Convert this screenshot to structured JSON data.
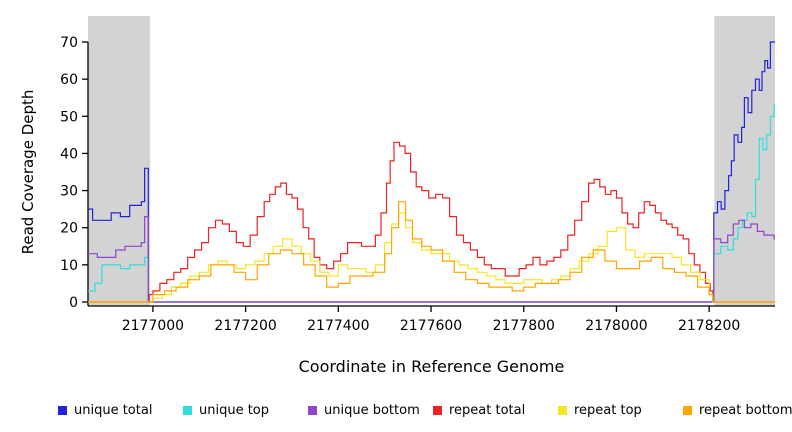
{
  "chart_data": {
    "type": "line",
    "title": "",
    "xlabel": "Coordinate in Reference Genome",
    "ylabel": "Read Coverage Depth",
    "xlim": [
      2176860,
      2178342
    ],
    "ylim": [
      0,
      70
    ],
    "x_ticks": [
      2177000,
      2177200,
      2177400,
      2177600,
      2177800,
      2178000,
      2178200
    ],
    "y_ticks": [
      0,
      10,
      20,
      30,
      40,
      50,
      60,
      70
    ],
    "grid": false,
    "legend_position": "bottom",
    "axis_color": "#000000",
    "masked_region_color": "#d3d3d3",
    "masked_regions": [
      [
        2176860,
        2176994
      ],
      [
        2178211,
        2178342
      ]
    ],
    "series": [
      {
        "name": "unique total",
        "color": "#2222dd",
        "points": [
          [
            2176860,
            25
          ],
          [
            2176870,
            22
          ],
          [
            2176890,
            22
          ],
          [
            2176910,
            24
          ],
          [
            2176930,
            23
          ],
          [
            2176950,
            26
          ],
          [
            2176965,
            26
          ],
          [
            2176975,
            27
          ],
          [
            2176982,
            36
          ],
          [
            2176990,
            0
          ],
          [
            2178208,
            0
          ],
          [
            2178210,
            24
          ],
          [
            2178218,
            27
          ],
          [
            2178226,
            25
          ],
          [
            2178234,
            30
          ],
          [
            2178242,
            34
          ],
          [
            2178248,
            38
          ],
          [
            2178254,
            45
          ],
          [
            2178262,
            43
          ],
          [
            2178270,
            47
          ],
          [
            2178276,
            55
          ],
          [
            2178284,
            51
          ],
          [
            2178292,
            57
          ],
          [
            2178300,
            60
          ],
          [
            2178308,
            57
          ],
          [
            2178314,
            62
          ],
          [
            2178320,
            65
          ],
          [
            2178326,
            63
          ],
          [
            2178332,
            70
          ],
          [
            2178340,
            70
          ]
        ]
      },
      {
        "name": "unique top",
        "color": "#30dede",
        "points": [
          [
            2176860,
            3
          ],
          [
            2176875,
            5
          ],
          [
            2176890,
            10
          ],
          [
            2176910,
            10
          ],
          [
            2176930,
            9
          ],
          [
            2176950,
            10
          ],
          [
            2176970,
            10
          ],
          [
            2176982,
            12
          ],
          [
            2176990,
            0
          ],
          [
            2178208,
            0
          ],
          [
            2178210,
            13
          ],
          [
            2178225,
            15
          ],
          [
            2178240,
            14
          ],
          [
            2178252,
            17
          ],
          [
            2178262,
            20
          ],
          [
            2178272,
            22
          ],
          [
            2178282,
            24
          ],
          [
            2178292,
            23
          ],
          [
            2178300,
            33
          ],
          [
            2178308,
            44
          ],
          [
            2178316,
            41
          ],
          [
            2178324,
            45
          ],
          [
            2178332,
            50
          ],
          [
            2178340,
            53
          ]
        ]
      },
      {
        "name": "unique bottom",
        "color": "#9044cc",
        "points": [
          [
            2176860,
            13
          ],
          [
            2176880,
            12
          ],
          [
            2176900,
            12
          ],
          [
            2176920,
            14
          ],
          [
            2176940,
            15
          ],
          [
            2176960,
            15
          ],
          [
            2176975,
            16
          ],
          [
            2176982,
            23
          ],
          [
            2176990,
            0
          ],
          [
            2178208,
            0
          ],
          [
            2178210,
            17
          ],
          [
            2178225,
            16
          ],
          [
            2178240,
            18
          ],
          [
            2178252,
            21
          ],
          [
            2178264,
            22
          ],
          [
            2178276,
            20
          ],
          [
            2178290,
            21
          ],
          [
            2178304,
            19
          ],
          [
            2178318,
            18
          ],
          [
            2178330,
            18
          ],
          [
            2178340,
            17
          ]
        ]
      },
      {
        "name": "repeat total",
        "color": "#ee2222",
        "points": [
          [
            2176860,
            0
          ],
          [
            2176988,
            0
          ],
          [
            2176992,
            2
          ],
          [
            2177000,
            3
          ],
          [
            2177015,
            5
          ],
          [
            2177030,
            6
          ],
          [
            2177045,
            8
          ],
          [
            2177060,
            9
          ],
          [
            2177075,
            12
          ],
          [
            2177090,
            14
          ],
          [
            2177105,
            16
          ],
          [
            2177120,
            20
          ],
          [
            2177135,
            22
          ],
          [
            2177150,
            21
          ],
          [
            2177165,
            19
          ],
          [
            2177180,
            16
          ],
          [
            2177195,
            15
          ],
          [
            2177210,
            18
          ],
          [
            2177225,
            23
          ],
          [
            2177240,
            27
          ],
          [
            2177252,
            29
          ],
          [
            2177264,
            31
          ],
          [
            2177276,
            32
          ],
          [
            2177288,
            29
          ],
          [
            2177300,
            28
          ],
          [
            2177312,
            25
          ],
          [
            2177324,
            20
          ],
          [
            2177336,
            17
          ],
          [
            2177348,
            12
          ],
          [
            2177360,
            10
          ],
          [
            2177375,
            9
          ],
          [
            2177390,
            11
          ],
          [
            2177405,
            13
          ],
          [
            2177420,
            16
          ],
          [
            2177435,
            16
          ],
          [
            2177450,
            15
          ],
          [
            2177465,
            15
          ],
          [
            2177480,
            18
          ],
          [
            2177492,
            24
          ],
          [
            2177504,
            32
          ],
          [
            2177512,
            38
          ],
          [
            2177520,
            43
          ],
          [
            2177532,
            42
          ],
          [
            2177544,
            40
          ],
          [
            2177556,
            35
          ],
          [
            2177568,
            31
          ],
          [
            2177580,
            30
          ],
          [
            2177595,
            28
          ],
          [
            2177610,
            29
          ],
          [
            2177625,
            28
          ],
          [
            2177640,
            23
          ],
          [
            2177655,
            18
          ],
          [
            2177670,
            16
          ],
          [
            2177685,
            14
          ],
          [
            2177700,
            12
          ],
          [
            2177715,
            10
          ],
          [
            2177730,
            9
          ],
          [
            2177745,
            9
          ],
          [
            2177760,
            7
          ],
          [
            2177775,
            7
          ],
          [
            2177790,
            9
          ],
          [
            2177805,
            10
          ],
          [
            2177820,
            12
          ],
          [
            2177835,
            10
          ],
          [
            2177850,
            11
          ],
          [
            2177865,
            12
          ],
          [
            2177880,
            14
          ],
          [
            2177895,
            18
          ],
          [
            2177910,
            22
          ],
          [
            2177925,
            27
          ],
          [
            2177940,
            32
          ],
          [
            2177952,
            33
          ],
          [
            2177964,
            31
          ],
          [
            2177976,
            29
          ],
          [
            2177988,
            30
          ],
          [
            2178000,
            28
          ],
          [
            2178012,
            24
          ],
          [
            2178024,
            21
          ],
          [
            2178036,
            20
          ],
          [
            2178048,
            24
          ],
          [
            2178060,
            27
          ],
          [
            2178072,
            26
          ],
          [
            2178084,
            24
          ],
          [
            2178096,
            22
          ],
          [
            2178108,
            21
          ],
          [
            2178120,
            20
          ],
          [
            2178132,
            18
          ],
          [
            2178144,
            17
          ],
          [
            2178156,
            13
          ],
          [
            2178168,
            10
          ],
          [
            2178180,
            8
          ],
          [
            2178192,
            5
          ],
          [
            2178202,
            3
          ],
          [
            2178208,
            0
          ],
          [
            2178340,
            0
          ]
        ]
      },
      {
        "name": "repeat top",
        "color": "#f5e626",
        "points": [
          [
            2176860,
            0
          ],
          [
            2176990,
            0
          ],
          [
            2177000,
            1
          ],
          [
            2177020,
            2
          ],
          [
            2177040,
            4
          ],
          [
            2177060,
            5
          ],
          [
            2177080,
            7
          ],
          [
            2177100,
            8
          ],
          [
            2177120,
            10
          ],
          [
            2177140,
            11
          ],
          [
            2177160,
            10
          ],
          [
            2177180,
            9
          ],
          [
            2177200,
            10
          ],
          [
            2177220,
            11
          ],
          [
            2177240,
            13
          ],
          [
            2177260,
            15
          ],
          [
            2177280,
            17
          ],
          [
            2177300,
            15
          ],
          [
            2177320,
            13
          ],
          [
            2177340,
            11
          ],
          [
            2177360,
            8
          ],
          [
            2177380,
            7
          ],
          [
            2177400,
            10
          ],
          [
            2177420,
            9
          ],
          [
            2177440,
            9
          ],
          [
            2177460,
            8
          ],
          [
            2177480,
            10
          ],
          [
            2177500,
            16
          ],
          [
            2177515,
            21
          ],
          [
            2177530,
            24
          ],
          [
            2177545,
            20
          ],
          [
            2177560,
            16
          ],
          [
            2177580,
            14
          ],
          [
            2177600,
            13
          ],
          [
            2177620,
            13
          ],
          [
            2177640,
            11
          ],
          [
            2177660,
            10
          ],
          [
            2177680,
            9
          ],
          [
            2177700,
            8
          ],
          [
            2177720,
            7
          ],
          [
            2177740,
            6
          ],
          [
            2177760,
            5
          ],
          [
            2177780,
            5
          ],
          [
            2177800,
            6
          ],
          [
            2177820,
            6
          ],
          [
            2177840,
            5
          ],
          [
            2177860,
            6
          ],
          [
            2177880,
            7
          ],
          [
            2177900,
            9
          ],
          [
            2177920,
            11
          ],
          [
            2177940,
            13
          ],
          [
            2177960,
            15
          ],
          [
            2177980,
            19
          ],
          [
            2178000,
            20
          ],
          [
            2178020,
            14
          ],
          [
            2178040,
            12
          ],
          [
            2178060,
            13
          ],
          [
            2178080,
            13
          ],
          [
            2178100,
            13
          ],
          [
            2178120,
            12
          ],
          [
            2178140,
            10
          ],
          [
            2178160,
            8
          ],
          [
            2178180,
            6
          ],
          [
            2178200,
            2
          ],
          [
            2178208,
            0
          ],
          [
            2178340,
            0
          ]
        ]
      },
      {
        "name": "repeat bottom",
        "color": "#ffa500",
        "points": [
          [
            2176860,
            0
          ],
          [
            2176990,
            0
          ],
          [
            2177000,
            2
          ],
          [
            2177025,
            3
          ],
          [
            2177050,
            4
          ],
          [
            2177075,
            6
          ],
          [
            2177100,
            7
          ],
          [
            2177125,
            10
          ],
          [
            2177150,
            10
          ],
          [
            2177175,
            8
          ],
          [
            2177200,
            6
          ],
          [
            2177225,
            10
          ],
          [
            2177250,
            13
          ],
          [
            2177275,
            14
          ],
          [
            2177300,
            13
          ],
          [
            2177325,
            10
          ],
          [
            2177350,
            7
          ],
          [
            2177375,
            4
          ],
          [
            2177400,
            5
          ],
          [
            2177425,
            7
          ],
          [
            2177450,
            7
          ],
          [
            2177475,
            8
          ],
          [
            2177500,
            13
          ],
          [
            2177515,
            20
          ],
          [
            2177530,
            27
          ],
          [
            2177545,
            22
          ],
          [
            2177560,
            17
          ],
          [
            2177580,
            15
          ],
          [
            2177600,
            14
          ],
          [
            2177625,
            11
          ],
          [
            2177650,
            8
          ],
          [
            2177675,
            6
          ],
          [
            2177700,
            5
          ],
          [
            2177725,
            4
          ],
          [
            2177750,
            4
          ],
          [
            2177775,
            3
          ],
          [
            2177800,
            4
          ],
          [
            2177825,
            5
          ],
          [
            2177850,
            5
          ],
          [
            2177875,
            6
          ],
          [
            2177900,
            8
          ],
          [
            2177925,
            12
          ],
          [
            2177950,
            14
          ],
          [
            2177975,
            11
          ],
          [
            2178000,
            9
          ],
          [
            2178025,
            9
          ],
          [
            2178050,
            11
          ],
          [
            2178075,
            12
          ],
          [
            2178100,
            9
          ],
          [
            2178125,
            8
          ],
          [
            2178150,
            7
          ],
          [
            2178175,
            4
          ],
          [
            2178200,
            2
          ],
          [
            2178208,
            0
          ],
          [
            2178340,
            0
          ]
        ]
      }
    ]
  }
}
